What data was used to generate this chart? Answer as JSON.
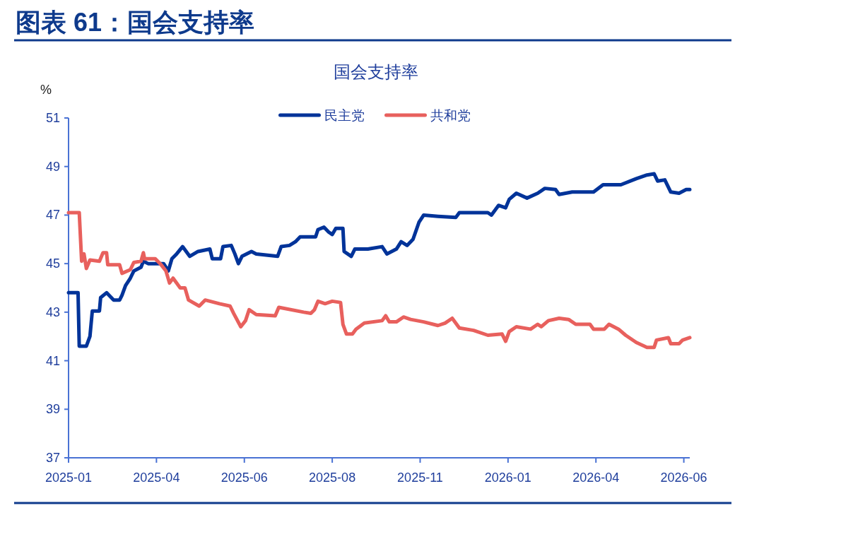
{
  "chart_data": {
    "type": "line",
    "title": "图表 61：国会支持率",
    "subtitle": "国会支持率",
    "ylabel": "%",
    "xlim": [
      "2025-01-20",
      "2026-06-27"
    ],
    "ylim": [
      37,
      51
    ],
    "xticks": [
      {
        "value": "2025-01-20",
        "label": "2025-01"
      },
      {
        "value": "2025-04-04",
        "label": "2025-04"
      },
      {
        "value": "2025-06-17",
        "label": "2025-06"
      },
      {
        "value": "2025-08-30",
        "label": "2025-08"
      },
      {
        "value": "2025-11-12",
        "label": "2025-11"
      },
      {
        "value": "2026-01-25",
        "label": "2026-01"
      },
      {
        "value": "2026-04-09",
        "label": "2026-04"
      },
      {
        "value": "2026-06-22",
        "label": "2026-06"
      }
    ],
    "yticks": [
      37,
      39,
      41,
      43,
      45,
      47,
      49,
      51
    ],
    "legend": "top",
    "series": [
      {
        "name": "民主党",
        "color": "#003399",
        "x": [
          "2025-01-20",
          "2025-01-28",
          "2025-01-29",
          "2025-02-04",
          "2025-02-07",
          "2025-02-09",
          "2025-02-15",
          "2025-02-16",
          "2025-02-21",
          "2025-02-27",
          "2025-03-04",
          "2025-03-06",
          "2025-03-09",
          "2025-03-13",
          "2025-03-16",
          "2025-03-22",
          "2025-03-24",
          "2025-03-28",
          "2025-04-10",
          "2025-04-14",
          "2025-04-17",
          "2025-04-21",
          "2025-04-26",
          "2025-05-02",
          "2025-05-09",
          "2025-05-19",
          "2025-05-21",
          "2025-05-28",
          "2025-05-30",
          "2025-06-06",
          "2025-06-09",
          "2025-06-12",
          "2025-06-15",
          "2025-06-23",
          "2025-06-27",
          "2025-07-15",
          "2025-07-18",
          "2025-07-25",
          "2025-07-30",
          "2025-08-03",
          "2025-08-16",
          "2025-08-18",
          "2025-08-23",
          "2025-08-27",
          "2025-08-30",
          "2025-09-02",
          "2025-09-08",
          "2025-09-09",
          "2025-09-12",
          "2025-09-15",
          "2025-09-18",
          "2025-09-29",
          "2025-10-11",
          "2025-10-15",
          "2025-10-23",
          "2025-10-27",
          "2025-11-01",
          "2025-11-06",
          "2025-11-11",
          "2025-11-15",
          "2025-11-27",
          "2025-12-12",
          "2025-12-15",
          "2026-01-08",
          "2026-01-11",
          "2026-01-17",
          "2026-01-23",
          "2026-01-26",
          "2026-02-01",
          "2026-02-10",
          "2026-02-19",
          "2026-02-25",
          "2026-03-06",
          "2026-03-09",
          "2026-03-20",
          "2026-04-07",
          "2026-04-15",
          "2026-04-30",
          "2026-05-13",
          "2026-05-22",
          "2026-05-28",
          "2026-05-31",
          "2026-06-06",
          "2026-06-11",
          "2026-06-18",
          "2026-06-24",
          "2026-06-27"
        ],
        "values": [
          43.8,
          43.8,
          41.6,
          41.6,
          42.0,
          43.05,
          43.05,
          43.6,
          43.8,
          43.5,
          43.5,
          43.7,
          44.1,
          44.4,
          44.7,
          44.85,
          45.1,
          45.0,
          45.0,
          44.7,
          45.2,
          45.4,
          45.7,
          45.3,
          45.5,
          45.6,
          45.2,
          45.2,
          45.7,
          45.75,
          45.4,
          45.0,
          45.3,
          45.5,
          45.4,
          45.3,
          45.7,
          45.75,
          45.9,
          46.1,
          46.1,
          46.4,
          46.5,
          46.3,
          46.2,
          46.45,
          46.45,
          45.5,
          45.4,
          45.3,
          45.6,
          45.6,
          45.7,
          45.4,
          45.6,
          45.9,
          45.75,
          46.0,
          46.7,
          47.0,
          46.95,
          46.9,
          47.1,
          47.1,
          47.0,
          47.4,
          47.3,
          47.65,
          47.9,
          47.7,
          47.9,
          48.1,
          48.05,
          47.85,
          47.95,
          47.95,
          48.25,
          48.25,
          48.5,
          48.65,
          48.7,
          48.4,
          48.45,
          47.95,
          47.9,
          48.05,
          48.05
        ]
      },
      {
        "name": "共和党",
        "color": "#e8605d",
        "x": [
          "2025-01-20",
          "2025-01-29",
          "2025-01-31",
          "2025-02-02",
          "2025-02-04",
          "2025-02-07",
          "2025-02-15",
          "2025-02-18",
          "2025-02-21",
          "2025-02-22",
          "2025-03-04",
          "2025-03-06",
          "2025-03-13",
          "2025-03-16",
          "2025-03-22",
          "2025-03-24",
          "2025-03-25",
          "2025-04-03",
          "2025-04-08",
          "2025-04-12",
          "2025-04-15",
          "2025-04-18",
          "2025-04-24",
          "2025-04-28",
          "2025-05-01",
          "2025-05-10",
          "2025-05-15",
          "2025-05-27",
          "2025-06-05",
          "2025-06-08",
          "2025-06-14",
          "2025-06-18",
          "2025-06-21",
          "2025-06-27",
          "2025-07-13",
          "2025-07-16",
          "2025-08-06",
          "2025-08-12",
          "2025-08-15",
          "2025-08-18",
          "2025-08-24",
          "2025-08-30",
          "2025-09-06",
          "2025-09-08",
          "2025-09-11",
          "2025-09-16",
          "2025-09-19",
          "2025-09-26",
          "2025-10-11",
          "2025-10-14",
          "2025-10-17",
          "2025-10-23",
          "2025-10-29",
          "2025-11-04",
          "2025-11-15",
          "2025-11-27",
          "2025-12-03",
          "2025-12-09",
          "2025-12-15",
          "2025-12-27",
          "2026-01-08",
          "2026-01-20",
          "2026-01-23",
          "2026-01-26",
          "2026-02-01",
          "2026-02-13",
          "2026-02-19",
          "2026-02-22",
          "2026-02-28",
          "2026-03-09",
          "2026-03-17",
          "2026-03-23",
          "2026-04-04",
          "2026-04-07",
          "2026-04-16",
          "2026-04-20",
          "2026-04-28",
          "2026-05-04",
          "2026-05-13",
          "2026-05-22",
          "2026-05-28",
          "2026-05-30",
          "2026-06-09",
          "2026-06-11",
          "2026-06-18",
          "2026-06-21",
          "2026-06-27"
        ],
        "values": [
          47.1,
          47.1,
          45.1,
          45.4,
          44.8,
          45.15,
          45.1,
          45.45,
          45.45,
          44.95,
          44.95,
          44.6,
          44.75,
          45.05,
          45.1,
          45.45,
          45.2,
          45.2,
          44.95,
          44.7,
          44.2,
          44.4,
          44.0,
          44.0,
          43.5,
          43.25,
          43.5,
          43.35,
          43.25,
          42.95,
          42.4,
          42.65,
          43.1,
          42.9,
          42.85,
          43.2,
          43.0,
          42.95,
          43.1,
          43.45,
          43.35,
          43.45,
          43.4,
          42.5,
          42.1,
          42.1,
          42.3,
          42.55,
          42.65,
          42.85,
          42.6,
          42.6,
          42.8,
          42.7,
          42.6,
          42.45,
          42.55,
          42.75,
          42.35,
          42.25,
          42.05,
          42.1,
          41.8,
          42.2,
          42.4,
          42.3,
          42.5,
          42.4,
          42.65,
          42.75,
          42.7,
          42.5,
          42.5,
          42.3,
          42.3,
          42.5,
          42.3,
          42.05,
          41.75,
          41.55,
          41.55,
          41.85,
          41.95,
          41.7,
          41.7,
          41.85,
          41.95
        ]
      }
    ]
  }
}
